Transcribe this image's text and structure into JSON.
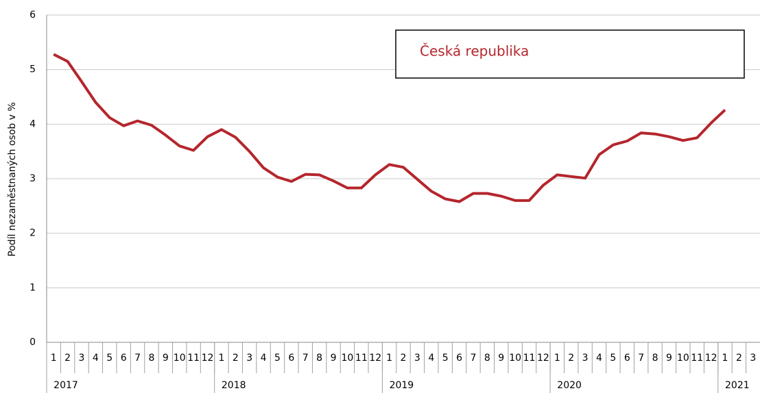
{
  "chart_data": {
    "type": "line",
    "y_label": "Podíl nezaměstnaných osob v %",
    "categories": [
      "1",
      "2",
      "3",
      "4",
      "5",
      "6",
      "7",
      "8",
      "9",
      "10",
      "11",
      "12",
      "1",
      "2",
      "3",
      "4",
      "5",
      "6",
      "7",
      "8",
      "9",
      "10",
      "11",
      "12",
      "1",
      "2",
      "3",
      "4",
      "5",
      "6",
      "7",
      "8",
      "9",
      "10",
      "11",
      "12",
      "1",
      "2",
      "3",
      "4",
      "5",
      "6",
      "7",
      "8",
      "9",
      "10",
      "11",
      "12",
      "1",
      "2",
      "3"
    ],
    "years": [
      "2017",
      "2018",
      "2019",
      "2020",
      "2021"
    ],
    "series": [
      {
        "name": "Česká republika",
        "color": "#b5262d",
        "values": [
          5.28,
          5.15,
          4.78,
          4.4,
          4.12,
          3.97,
          4.06,
          3.98,
          3.8,
          3.6,
          3.52,
          3.77,
          3.9,
          3.76,
          3.5,
          3.2,
          3.03,
          2.95,
          3.08,
          3.07,
          2.96,
          2.83,
          2.83,
          3.07,
          3.26,
          3.21,
          2.99,
          2.77,
          2.63,
          2.58,
          2.73,
          2.73,
          2.68,
          2.6,
          2.6,
          2.88,
          3.07,
          3.04,
          3.01,
          3.44,
          3.62,
          3.69,
          3.84,
          3.82,
          3.77,
          3.7,
          3.75,
          4.02,
          4.26,
          null,
          null
        ]
      }
    ],
    "ylim": [
      0,
      6
    ],
    "yticks": [
      0,
      1,
      2,
      3,
      4,
      5,
      6
    ],
    "grid": true
  }
}
